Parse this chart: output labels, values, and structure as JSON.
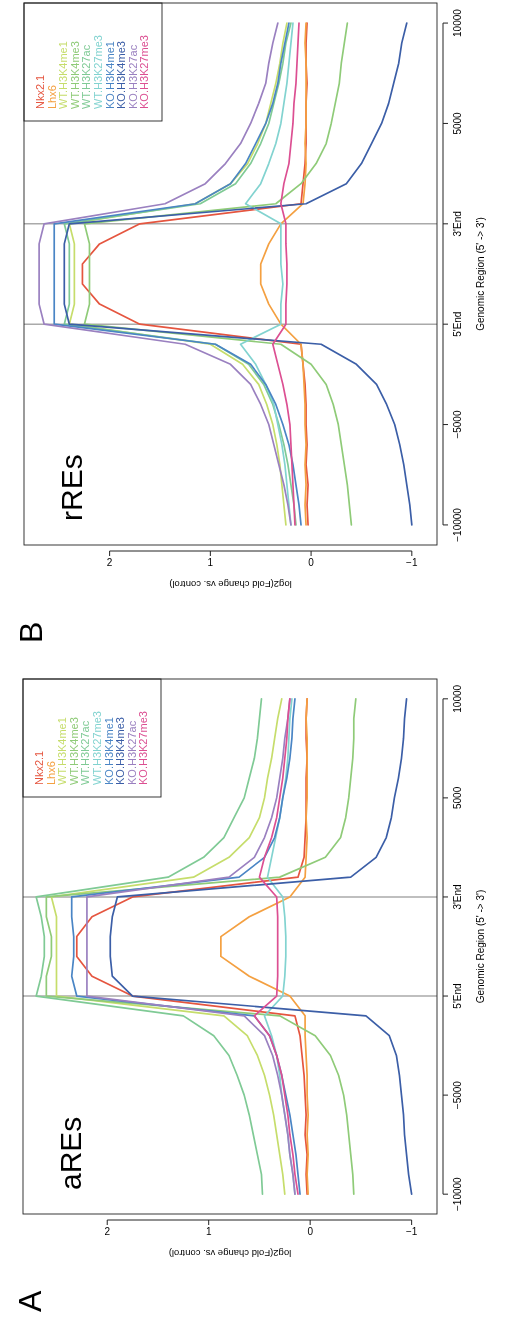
{
  "chart_data": [
    {
      "type": "line",
      "orientation": "horizontal",
      "title": "aREs",
      "xlabel": "log2(Fold change vs. control)",
      "ylabel": "Genomic Region (5' -> 3')",
      "annotations": [
        "A"
      ],
      "legend": "top left",
      "xlim": [
        2.83,
        -1.25
      ],
      "xticks": [
        -1,
        0,
        1,
        2
      ],
      "categories": [
        "10000",
        null,
        null,
        null,
        null,
        "5000",
        null,
        null,
        null,
        null,
        "3'End",
        null,
        null,
        null,
        null,
        "5'End",
        null,
        null,
        null,
        null,
        "−5000",
        null,
        null,
        null,
        null,
        "−10000"
      ],
      "ref_lines": [
        {
          "axis": "y",
          "value": "3'End",
          "color": "#aaaaaa"
        },
        {
          "axis": "y",
          "value": "5'End",
          "color": "#aaaaaa"
        }
      ],
      "series": [
        {
          "name": "Nkx2.1",
          "color": "#e5553f",
          "values": [
            0.03,
            0.04,
            0.04,
            0.03,
            0.04,
            0.04,
            0.04,
            0.05,
            0.06,
            0.12,
            1.75,
            2.15,
            2.3,
            2.3,
            2.15,
            1.75,
            0.15,
            0.1,
            0.08,
            0.06,
            0.05,
            0.04,
            0.05,
            0.03,
            0.04,
            0.03
          ]
        },
        {
          "name": "Lhx6",
          "color": "#f4a041",
          "values": [
            0.03,
            0.04,
            0.03,
            0.03,
            0.03,
            0.03,
            0.04,
            0.03,
            0.04,
            0.05,
            0.2,
            0.6,
            0.88,
            0.88,
            0.6,
            0.2,
            0.05,
            0.05,
            0.04,
            0.03,
            0.03,
            0.02,
            0.03,
            0.02,
            0.03,
            0.02
          ]
        },
        {
          "name": "WT.H3K4me1",
          "color": "#c6dd6b",
          "values": [
            0.28,
            0.32,
            0.35,
            0.38,
            0.42,
            0.45,
            0.5,
            0.6,
            0.8,
            1.15,
            2.55,
            2.5,
            2.5,
            2.5,
            2.5,
            2.5,
            0.85,
            0.62,
            0.52,
            0.45,
            0.4,
            0.36,
            0.33,
            0.3,
            0.27,
            0.25
          ]
        },
        {
          "name": "WT.H3K4me3",
          "color": "#8fcb78",
          "values": [
            -0.45,
            -0.43,
            -0.43,
            -0.42,
            -0.4,
            -0.38,
            -0.35,
            -0.3,
            -0.15,
            0.3,
            2.6,
            2.6,
            2.55,
            2.55,
            2.6,
            2.6,
            0.3,
            -0.05,
            -0.2,
            -0.28,
            -0.33,
            -0.36,
            -0.38,
            -0.4,
            -0.42,
            -0.43
          ]
        },
        {
          "name": "WT.H3K27ac",
          "color": "#7fca95",
          "values": [
            0.48,
            0.5,
            0.52,
            0.55,
            0.6,
            0.65,
            0.75,
            0.85,
            1.05,
            1.4,
            2.7,
            2.65,
            2.62,
            2.62,
            2.65,
            2.7,
            1.25,
            0.95,
            0.8,
            0.72,
            0.65,
            0.6,
            0.56,
            0.52,
            0.48,
            0.47
          ]
        },
        {
          "name": "WT.H3K27me3",
          "color": "#82d3d0",
          "values": [
            0.18,
            0.2,
            0.21,
            0.22,
            0.24,
            0.27,
            0.3,
            0.34,
            0.38,
            0.42,
            0.27,
            0.25,
            0.24,
            0.24,
            0.25,
            0.27,
            0.45,
            0.38,
            0.33,
            0.3,
            0.28,
            0.25,
            0.22,
            0.2,
            0.17,
            0.15
          ]
        },
        {
          "name": "KO.H3K4me1",
          "color": "#4a85c5",
          "values": [
            0.15,
            0.17,
            0.18,
            0.2,
            0.23,
            0.27,
            0.3,
            0.35,
            0.45,
            0.7,
            2.35,
            2.35,
            2.33,
            2.33,
            2.35,
            2.3,
            0.55,
            0.4,
            0.33,
            0.28,
            0.24,
            0.2,
            0.17,
            0.14,
            0.12,
            0.1
          ]
        },
        {
          "name": "KO.H3K4me3",
          "color": "#3b5ea7",
          "values": [
            -0.95,
            -0.93,
            -0.92,
            -0.9,
            -0.87,
            -0.83,
            -0.8,
            -0.75,
            -0.65,
            -0.4,
            1.9,
            1.95,
            1.97,
            1.97,
            1.95,
            1.75,
            -0.55,
            -0.78,
            -0.85,
            -0.88,
            -0.9,
            -0.92,
            -0.93,
            -0.95,
            -0.97,
            -1.0
          ]
        },
        {
          "name": "KO.H3K27ac",
          "color": "#9a80c0",
          "values": [
            0.2,
            0.22,
            0.25,
            0.27,
            0.3,
            0.33,
            0.38,
            0.45,
            0.55,
            0.8,
            2.2,
            2.2,
            2.2,
            2.2,
            2.2,
            2.2,
            0.65,
            0.45,
            0.37,
            0.32,
            0.28,
            0.25,
            0.22,
            0.2,
            0.17,
            0.15
          ]
        },
        {
          "name": "KO.H3K27me3",
          "color": "#dc4f92",
          "values": [
            0.2,
            0.22,
            0.23,
            0.25,
            0.27,
            0.3,
            0.33,
            0.38,
            0.45,
            0.5,
            0.33,
            0.32,
            0.32,
            0.32,
            0.32,
            0.33,
            0.55,
            0.4,
            0.33,
            0.28,
            0.25,
            0.22,
            0.2,
            0.17,
            0.15,
            0.12
          ]
        }
      ]
    },
    {
      "type": "line",
      "orientation": "horizontal",
      "title": "rREs",
      "xlabel": "log2(Fold change vs. control)",
      "ylabel": "Genomic Region (5' -> 3')",
      "annotations": [
        "B"
      ],
      "legend": "top left",
      "xlim": [
        2.85,
        -1.25
      ],
      "xticks": [
        -1,
        0,
        1,
        2
      ],
      "categories": [
        "10000",
        null,
        null,
        null,
        null,
        "5000",
        null,
        null,
        null,
        null,
        "3'End",
        null,
        null,
        null,
        null,
        "5'End",
        null,
        null,
        null,
        null,
        "−5000",
        null,
        null,
        null,
        null,
        "−10000"
      ],
      "ref_lines": [
        {
          "axis": "y",
          "value": "3'End",
          "color": "#aaaaaa"
        },
        {
          "axis": "y",
          "value": "5'End",
          "color": "#aaaaaa"
        }
      ],
      "series": [
        {
          "name": "Nkx2.1",
          "color": "#e5553f",
          "values": [
            0.04,
            0.05,
            0.05,
            0.04,
            0.05,
            0.05,
            0.05,
            0.06,
            0.08,
            0.1,
            1.7,
            2.1,
            2.27,
            2.27,
            2.1,
            1.7,
            0.1,
            0.08,
            0.06,
            0.05,
            0.05,
            0.04,
            0.05,
            0.03,
            0.04,
            0.03
          ]
        },
        {
          "name": "Lhx6",
          "color": "#f4a041",
          "values": [
            0.05,
            0.06,
            0.05,
            0.05,
            0.05,
            0.05,
            0.06,
            0.05,
            0.06,
            0.08,
            0.3,
            0.42,
            0.5,
            0.5,
            0.42,
            0.3,
            0.1,
            0.08,
            0.07,
            0.06,
            0.06,
            0.05,
            0.06,
            0.05,
            0.06,
            0.05
          ]
        },
        {
          "name": "WT.H3K4me1",
          "color": "#c6dd6b",
          "values": [
            0.24,
            0.28,
            0.31,
            0.35,
            0.4,
            0.45,
            0.53,
            0.63,
            0.8,
            1.15,
            2.4,
            2.35,
            2.35,
            2.35,
            2.35,
            2.4,
            1.0,
            0.68,
            0.52,
            0.44,
            0.38,
            0.34,
            0.31,
            0.29,
            0.27,
            0.25
          ]
        },
        {
          "name": "WT.H3K4me3",
          "color": "#8fcb78",
          "values": [
            -0.36,
            -0.33,
            -0.3,
            -0.28,
            -0.24,
            -0.2,
            -0.15,
            -0.05,
            0.1,
            0.35,
            2.25,
            2.2,
            2.2,
            2.2,
            2.2,
            2.25,
            0.3,
            0.0,
            -0.15,
            -0.22,
            -0.27,
            -0.3,
            -0.33,
            -0.36,
            -0.38,
            -0.4
          ]
        },
        {
          "name": "WT.H3K27ac",
          "color": "#7fca95",
          "values": [
            0.2,
            0.25,
            0.28,
            0.32,
            0.37,
            0.42,
            0.5,
            0.6,
            0.75,
            1.1,
            2.45,
            2.4,
            2.4,
            2.4,
            2.4,
            2.45,
            0.95,
            0.62,
            0.47,
            0.38,
            0.32,
            0.27,
            0.23,
            0.2,
            0.17,
            0.15
          ]
        },
        {
          "name": "WT.H3K27me3",
          "color": "#82d3d0",
          "values": [
            0.18,
            0.2,
            0.22,
            0.24,
            0.27,
            0.3,
            0.35,
            0.42,
            0.5,
            0.65,
            0.3,
            0.3,
            0.3,
            0.28,
            0.3,
            0.3,
            0.7,
            0.55,
            0.45,
            0.37,
            0.33,
            0.29,
            0.26,
            0.24,
            0.22,
            0.2
          ]
        },
        {
          "name": "KO.H3K4me1",
          "color": "#4a85c5",
          "values": [
            0.22,
            0.26,
            0.3,
            0.33,
            0.38,
            0.45,
            0.55,
            0.65,
            0.8,
            1.15,
            2.55,
            2.55,
            2.55,
            2.55,
            2.55,
            2.55,
            0.95,
            0.6,
            0.45,
            0.35,
            0.28,
            0.22,
            0.18,
            0.15,
            0.12,
            0.1
          ]
        },
        {
          "name": "KO.H3K4me3",
          "color": "#3b5ea7",
          "values": [
            -0.95,
            -0.9,
            -0.87,
            -0.82,
            -0.77,
            -0.7,
            -0.6,
            -0.5,
            -0.35,
            0.05,
            2.4,
            2.45,
            2.45,
            2.45,
            2.45,
            2.4,
            -0.1,
            -0.45,
            -0.65,
            -0.75,
            -0.83,
            -0.88,
            -0.92,
            -0.95,
            -0.98,
            -1.0
          ]
        },
        {
          "name": "KO.H3K27ac",
          "color": "#9a80c0",
          "values": [
            0.33,
            0.38,
            0.42,
            0.45,
            0.52,
            0.6,
            0.7,
            0.85,
            1.05,
            1.45,
            2.65,
            2.7,
            2.7,
            2.7,
            2.7,
            2.65,
            1.25,
            0.8,
            0.6,
            0.5,
            0.42,
            0.37,
            0.32,
            0.27,
            0.23,
            0.2
          ]
        },
        {
          "name": "KO.H3K27me3",
          "color": "#dc4f92",
          "values": [
            0.12,
            0.13,
            0.14,
            0.15,
            0.17,
            0.18,
            0.2,
            0.22,
            0.27,
            0.3,
            0.25,
            0.25,
            0.24,
            0.24,
            0.25,
            0.25,
            0.38,
            0.33,
            0.28,
            0.24,
            0.21,
            0.2,
            0.19,
            0.18,
            0.17,
            0.16
          ]
        }
      ]
    }
  ]
}
